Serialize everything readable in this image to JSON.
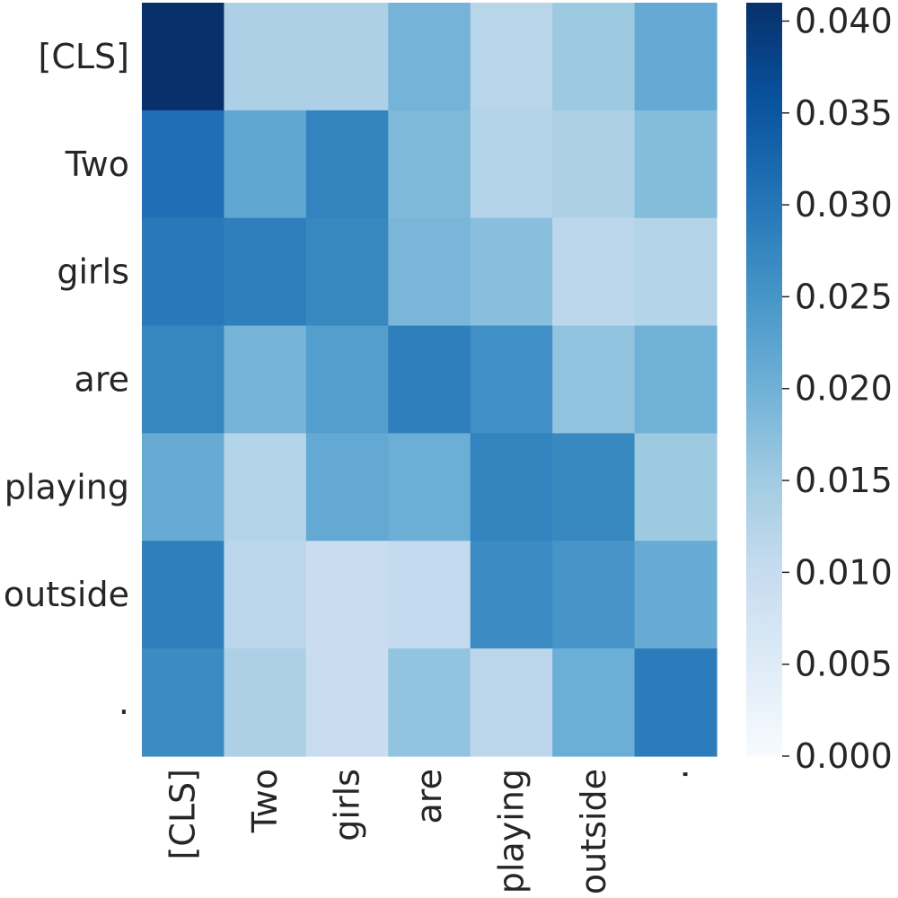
{
  "chart_data": {
    "type": "heatmap",
    "title": "",
    "xlabel": "",
    "ylabel": "",
    "x_categories": [
      "[CLS]",
      "Two",
      "girls",
      "are",
      "playing",
      "outside",
      "."
    ],
    "y_categories": [
      "[CLS]",
      "Two",
      "girls",
      "are",
      "playing",
      "outside",
      "."
    ],
    "values": [
      [
        0.041,
        0.0135,
        0.0135,
        0.0195,
        0.012,
        0.0155,
        0.0215
      ],
      [
        0.031,
        0.022,
        0.028,
        0.0185,
        0.0125,
        0.0135,
        0.018
      ],
      [
        0.0295,
        0.0285,
        0.027,
        0.019,
        0.0175,
        0.0115,
        0.0125
      ],
      [
        0.0275,
        0.0195,
        0.0235,
        0.0285,
        0.026,
        0.0165,
        0.02
      ],
      [
        0.021,
        0.0125,
        0.0215,
        0.0205,
        0.028,
        0.027,
        0.0155
      ],
      [
        0.0285,
        0.0115,
        0.0095,
        0.0105,
        0.0265,
        0.025,
        0.021
      ],
      [
        0.0265,
        0.0135,
        0.0095,
        0.0165,
        0.0115,
        0.0205,
        0.029
      ]
    ],
    "colorbar": {
      "min": 0.0,
      "max": 0.041,
      "ticks": [
        0.0,
        0.005,
        0.01,
        0.015,
        0.02,
        0.025,
        0.03,
        0.035,
        0.04
      ],
      "tick_labels": [
        "0.000",
        "0.005",
        "0.010",
        "0.015",
        "0.020",
        "0.025",
        "0.030",
        "0.035",
        "0.040"
      ]
    },
    "colormap": "Blues",
    "colormap_stops": [
      "#f7fbff",
      "#deebf7",
      "#c6dbef",
      "#9ecae1",
      "#6baed6",
      "#4292c6",
      "#2171b5",
      "#08519c",
      "#08306b"
    ]
  }
}
